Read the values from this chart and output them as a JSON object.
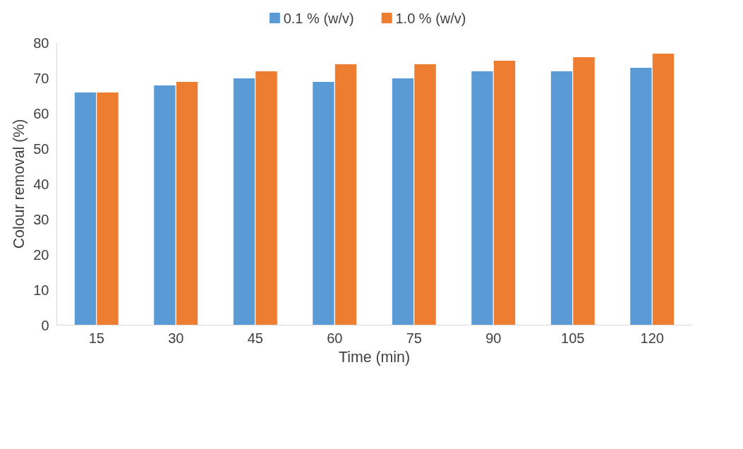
{
  "chart_data": {
    "type": "bar",
    "xlabel": "Time (min)",
    "ylabel": "Colour removal (%)",
    "categories": [
      "15",
      "30",
      "45",
      "60",
      "75",
      "90",
      "105",
      "120"
    ],
    "series": [
      {
        "name": "0.1 % (w/v)",
        "color": "#5b9bd5",
        "values": [
          66,
          68,
          70,
          69,
          70,
          72,
          72,
          73
        ]
      },
      {
        "name": "1.0 % (w/v)",
        "color": "#ed7d31",
        "values": [
          66,
          69,
          72,
          74,
          74,
          75,
          76,
          77
        ]
      }
    ],
    "ylim": [
      0,
      80
    ],
    "yticks": [
      0,
      10,
      20,
      30,
      40,
      50,
      60,
      70,
      80
    ],
    "grid": false,
    "legend": "top"
  }
}
